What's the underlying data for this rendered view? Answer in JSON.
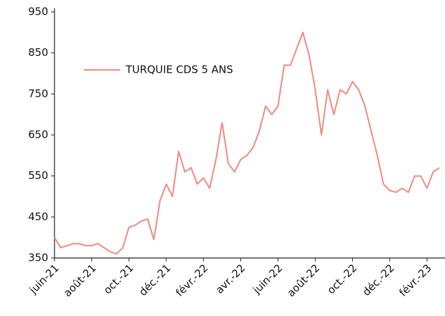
{
  "chart_data": {
    "type": "line",
    "categories": [
      "juin-21",
      null,
      null,
      null,
      null,
      null,
      "août-21",
      null,
      null,
      null,
      null,
      null,
      "oct.-21",
      null,
      null,
      null,
      null,
      null,
      "déc.-21",
      null,
      null,
      null,
      null,
      null,
      "févr.-22",
      null,
      null,
      null,
      null,
      null,
      "avr.-22",
      null,
      null,
      null,
      null,
      null,
      "juin-22",
      null,
      null,
      null,
      null,
      null,
      "août-22",
      null,
      null,
      null,
      null,
      null,
      "oct.-22",
      null,
      null,
      null,
      null,
      null,
      "déc.-22",
      null,
      null,
      null,
      null,
      null,
      "févr.-23",
      null,
      null
    ],
    "series": [
      {
        "name": "TURQUIE CDS 5 ANS",
        "color": "#f08a7e",
        "values": [
          400,
          375,
          380,
          385,
          385,
          380,
          380,
          385,
          375,
          365,
          360,
          375,
          425,
          430,
          440,
          445,
          395,
          490,
          530,
          500,
          610,
          560,
          570,
          530,
          545,
          520,
          590,
          680,
          580,
          560,
          590,
          600,
          620,
          660,
          720,
          700,
          720,
          820,
          820,
          860,
          900,
          845,
          760,
          650,
          760,
          700,
          760,
          750,
          780,
          760,
          720,
          660,
          600,
          530,
          515,
          510,
          520,
          510,
          550,
          550,
          520,
          560,
          570
        ]
      }
    ],
    "ylim": [
      350,
      950
    ],
    "yticks": [
      350,
      450,
      550,
      650,
      750,
      850,
      950
    ],
    "grid": false,
    "legend": "top-left"
  }
}
